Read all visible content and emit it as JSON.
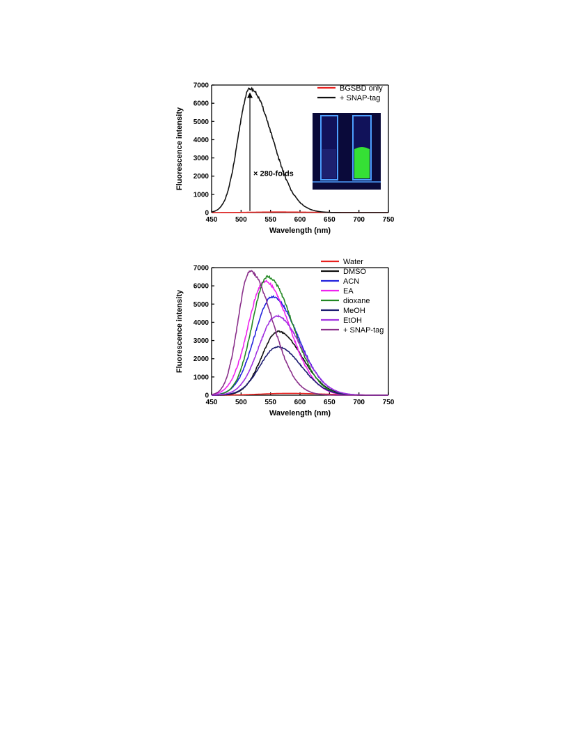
{
  "chart_data": [
    {
      "type": "line",
      "xlabel": "Wavelength (nm)",
      "ylabel": "Fluorescence intensity",
      "xlim": [
        450,
        750
      ],
      "ylim": [
        0,
        7000
      ],
      "xticks": [
        450,
        500,
        550,
        600,
        650,
        700,
        750
      ],
      "yticks": [
        0,
        1000,
        2000,
        3000,
        4000,
        5000,
        6000,
        7000
      ],
      "legend_position": "top-right",
      "annotation": "× 280-folds",
      "annotation_arrow_x": 515,
      "inset": "photo of two cuvettes under UV light: left faint blue (BGSBD only), right bright green (+ SNAP-tag)",
      "series": [
        {
          "name": "BGSBD only",
          "color": "#e8201e",
          "peak_x": 560,
          "peak_y": 30,
          "width_left": 40,
          "width_right": 60,
          "x": [
            450,
            500,
            550,
            560,
            600,
            650,
            700,
            750
          ],
          "y": [
            0,
            8,
            26,
            30,
            22,
            10,
            3,
            0
          ]
        },
        {
          "name": "+ SNAP-tag",
          "color": "#111111",
          "peak_x": 515,
          "peak_y": 6800,
          "width_left": 20,
          "width_right": 38,
          "x": [
            450,
            475,
            490,
            500,
            510,
            515,
            520,
            530,
            550,
            575,
            600,
            625,
            650,
            700,
            750
          ],
          "y": [
            0,
            600,
            2700,
            5200,
            6600,
            6800,
            6750,
            6300,
            4400,
            2200,
            950,
            400,
            170,
            30,
            5
          ]
        }
      ]
    },
    {
      "type": "line",
      "xlabel": "Wavelength (nm)",
      "ylabel": "Fluorescence intensity",
      "xlim": [
        450,
        750
      ],
      "ylim": [
        0,
        7000
      ],
      "xticks": [
        450,
        500,
        550,
        600,
        650,
        700,
        750
      ],
      "yticks": [
        0,
        1000,
        2000,
        3000,
        4000,
        5000,
        6000,
        7000
      ],
      "legend_position": "top-right",
      "series": [
        {
          "name": "Water",
          "color": "#e8201e",
          "peak_x": 580,
          "peak_y": 100,
          "width_left": 45,
          "width_right": 60
        },
        {
          "name": "DMSO",
          "color": "#111111",
          "peak_x": 563,
          "peak_y": 3500,
          "width_left": 28,
          "width_right": 40
        },
        {
          "name": "ACN",
          "color": "#2222dd",
          "peak_x": 553,
          "peak_y": 5400,
          "width_left": 30,
          "width_right": 43
        },
        {
          "name": "EA",
          "color": "#ee22ee",
          "peak_x": 540,
          "peak_y": 6250,
          "width_left": 28,
          "width_right": 42
        },
        {
          "name": "dioxane",
          "color": "#228822",
          "peak_x": 545,
          "peak_y": 6500,
          "width_left": 26,
          "width_right": 42
        },
        {
          "name": "MeOH",
          "color": "#1c1c70",
          "peak_x": 562,
          "peak_y": 2650,
          "width_left": 30,
          "width_right": 40
        },
        {
          "name": "EtOH",
          "color": "#a030e0",
          "peak_x": 560,
          "peak_y": 4350,
          "width_left": 30,
          "width_right": 42
        },
        {
          "name": "+ SNAP-tag",
          "color": "#8a2f8a",
          "peak_x": 515,
          "peak_y": 6800,
          "width_left": 20,
          "width_right": 38
        }
      ]
    }
  ],
  "colors": {
    "inset_background": "#0a0a3a",
    "cuvette_glow": "#4da0ff",
    "green_solution": "#35e035"
  }
}
